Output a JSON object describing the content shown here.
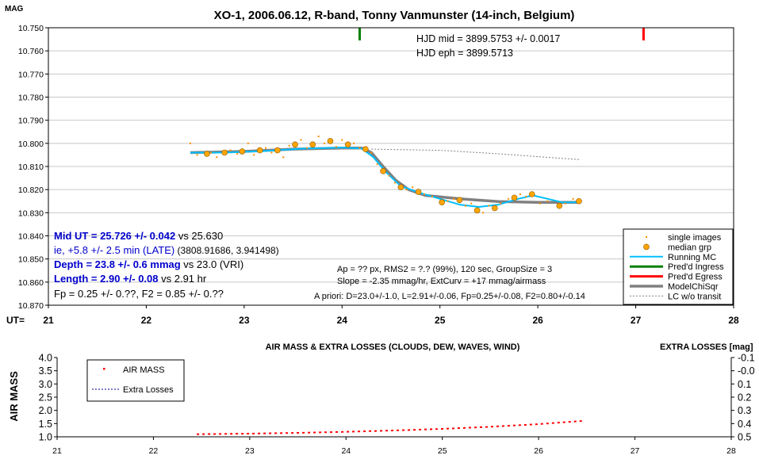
{
  "chart_data": [
    {
      "type": "scatter",
      "title": "XO-1, 2006.06.12, R-band, Tonny Vanmunster (14-inch, Belgium)",
      "ylabel": "MAG",
      "xlabel": "UT=",
      "xlim": [
        21,
        28
      ],
      "ylim": [
        10.75,
        10.87
      ],
      "y_reversed": true,
      "grid": "horizontal",
      "x_ticks": [
        "21",
        "22",
        "23",
        "24",
        "25",
        "26",
        "27",
        "28"
      ],
      "y_ticks": [
        "10.750",
        "10.760",
        "10.770",
        "10.780",
        "10.790",
        "10.800",
        "10.810",
        "10.820",
        "10.830",
        "10.840",
        "10.850",
        "10.860",
        "10.870"
      ],
      "ingress_marker_x": 24.18,
      "egress_marker_x": 27.08,
      "annotations_top": [
        "HJD mid = 3899.5753 +/- 0.0017",
        "HJD eph = 3899.5713"
      ],
      "results": [
        {
          "bold": "Mid UT = 25.726 +/- 0.042",
          "rest": " vs 25.630"
        },
        {
          "bold": "",
          "rest": "ie, +5.8 +/- 2.5 min (LATE)",
          "tail": " (3808.91686, 3.941498)"
        },
        {
          "bold": "Depth = 23.8 +/- 0.6 mmag",
          "rest": " vs 23.0 (VRI)"
        },
        {
          "bold": "Length = 2.90 +/- 0.08",
          "rest": "  vs 2.91 hr"
        },
        {
          "bold": "",
          "rest": "Fp = 0.25 +/- 0.??, F2 = 0.85 +/- 0.??",
          "plain": true
        }
      ],
      "params": [
        "Ap = ?? px, RMS2 = ?.? (99%), 120 sec, GroupSize = 3",
        "Slope = -2.35 mmag/hr, ExtCurv = +17 mmag/airmass",
        "A priori: D=23.0+/-1.0, L=2.91+/-0.06, Fp=0.25+/-0.08, F2=0.80+/-0.14"
      ],
      "legend": [
        "single images",
        "median grp",
        "Running MC",
        "Pred'd Ingress",
        "Pred'd Egress",
        "ModelChiSqr",
        "LC w/o transit"
      ],
      "legend_position": "bottom-right",
      "colors": {
        "single": "#ff8c00",
        "median": "#ffa500",
        "running": "#00bfff",
        "ingress": "#008000",
        "egress": "#ff0000",
        "model": "#808080",
        "nolc": "#808080"
      },
      "median_grp": [
        [
          22.62,
          10.8045
        ],
        [
          22.8,
          10.804
        ],
        [
          22.98,
          10.8035
        ],
        [
          23.16,
          10.803
        ],
        [
          23.34,
          10.803
        ],
        [
          23.52,
          10.8005
        ],
        [
          23.7,
          10.8005
        ],
        [
          23.88,
          10.799
        ],
        [
          24.06,
          10.8005
        ],
        [
          24.24,
          10.8025
        ],
        [
          24.42,
          10.812
        ],
        [
          24.6,
          10.819
        ],
        [
          24.78,
          10.821
        ],
        [
          25.02,
          10.8255
        ],
        [
          25.2,
          10.8245
        ],
        [
          25.38,
          10.829
        ],
        [
          25.56,
          10.828
        ],
        [
          25.76,
          10.8235
        ],
        [
          25.94,
          10.822
        ],
        [
          26.22,
          10.827
        ],
        [
          26.42,
          10.825
        ]
      ],
      "single_images": [
        [
          22.45,
          10.8
        ],
        [
          22.52,
          10.805
        ],
        [
          22.66,
          10.804
        ],
        [
          22.72,
          10.806
        ],
        [
          22.86,
          10.803
        ],
        [
          22.93,
          10.8045
        ],
        [
          23.04,
          10.8
        ],
        [
          23.1,
          10.805
        ],
        [
          23.22,
          10.802
        ],
        [
          23.28,
          10.804
        ],
        [
          23.4,
          10.806
        ],
        [
          23.46,
          10.801
        ],
        [
          23.58,
          10.7985
        ],
        [
          23.64,
          10.802
        ],
        [
          23.76,
          10.797
        ],
        [
          23.82,
          10.8
        ],
        [
          23.94,
          10.8015
        ],
        [
          24.0,
          10.7985
        ],
        [
          24.12,
          10.8
        ],
        [
          24.18,
          10.802
        ],
        [
          24.3,
          10.804
        ],
        [
          24.36,
          10.809
        ],
        [
          24.48,
          10.814
        ],
        [
          24.54,
          10.817
        ],
        [
          24.66,
          10.82
        ],
        [
          24.72,
          10.819
        ],
        [
          24.84,
          10.822
        ],
        [
          24.92,
          10.823
        ],
        [
          25.08,
          10.825
        ],
        [
          25.14,
          10.824
        ],
        [
          25.26,
          10.827
        ],
        [
          25.32,
          10.826
        ],
        [
          25.44,
          10.83
        ],
        [
          25.5,
          10.827
        ],
        [
          25.62,
          10.826
        ],
        [
          25.7,
          10.824
        ],
        [
          25.82,
          10.822
        ],
        [
          25.88,
          10.823
        ],
        [
          26.02,
          10.826
        ],
        [
          26.1,
          10.825
        ],
        [
          26.28,
          10.826
        ],
        [
          26.36,
          10.824
        ]
      ],
      "running_mc": [
        [
          22.45,
          10.804
        ],
        [
          22.8,
          10.804
        ],
        [
          23.2,
          10.8033
        ],
        [
          23.6,
          10.8023
        ],
        [
          24.0,
          10.8018
        ],
        [
          24.2,
          10.8022
        ],
        [
          24.32,
          10.806
        ],
        [
          24.45,
          10.8125
        ],
        [
          24.6,
          10.8185
        ],
        [
          24.8,
          10.8215
        ],
        [
          25.0,
          10.824
        ],
        [
          25.2,
          10.8265
        ],
        [
          25.4,
          10.8275
        ],
        [
          25.6,
          10.8265
        ],
        [
          25.8,
          10.824
        ],
        [
          25.95,
          10.8225
        ],
        [
          26.1,
          10.824
        ],
        [
          26.25,
          10.8255
        ],
        [
          26.4,
          10.8255
        ]
      ],
      "model": [
        [
          22.45,
          10.804
        ],
        [
          23.0,
          10.8035
        ],
        [
          23.5,
          10.8025
        ],
        [
          24.0,
          10.802
        ],
        [
          24.2,
          10.802
        ],
        [
          24.3,
          10.804
        ],
        [
          24.42,
          10.81
        ],
        [
          24.55,
          10.816
        ],
        [
          24.68,
          10.82
        ],
        [
          24.85,
          10.8225
        ],
        [
          25.2,
          10.824
        ],
        [
          25.6,
          10.8252
        ],
        [
          26.0,
          10.8255
        ],
        [
          26.42,
          10.8255
        ]
      ],
      "no_transit": [
        [
          24.3,
          10.8025
        ],
        [
          25.0,
          10.803
        ],
        [
          25.6,
          10.8045
        ],
        [
          26.42,
          10.807
        ]
      ]
    },
    {
      "type": "line",
      "title": "AIR MASS & EXTRA LOSSES (CLOUDS, DEW, WAVES, WIND)",
      "ylabel": "AIR MASS",
      "y2label": "EXTRA LOSSES [mag]",
      "xlim": [
        21,
        28
      ],
      "ylim": [
        1.0,
        4.0
      ],
      "y2lim": [
        0.5,
        -0.1
      ],
      "x_ticks": [
        "21",
        "22",
        "23",
        "24",
        "25",
        "26",
        "27",
        "28"
      ],
      "y_ticks": [
        "4.0",
        "3.5",
        "3.0",
        "2.5",
        "2.0",
        "1.5",
        "1.0"
      ],
      "y2_ticks": [
        "-0.1",
        "-0.0",
        "0.1",
        "0.2",
        "0.3",
        "0.4",
        "0.5"
      ],
      "legend": [
        "AIR MASS",
        "Extra Losses"
      ],
      "legend_position": "top-left",
      "colors": {
        "airmass": "#ff0000",
        "losses": "#00008b"
      },
      "airmass": [
        [
          22.45,
          1.1
        ],
        [
          23.0,
          1.12
        ],
        [
          23.5,
          1.15
        ],
        [
          24.0,
          1.19
        ],
        [
          24.5,
          1.24
        ],
        [
          25.0,
          1.3
        ],
        [
          25.5,
          1.38
        ],
        [
          26.0,
          1.48
        ],
        [
          26.45,
          1.6
        ]
      ]
    }
  ]
}
